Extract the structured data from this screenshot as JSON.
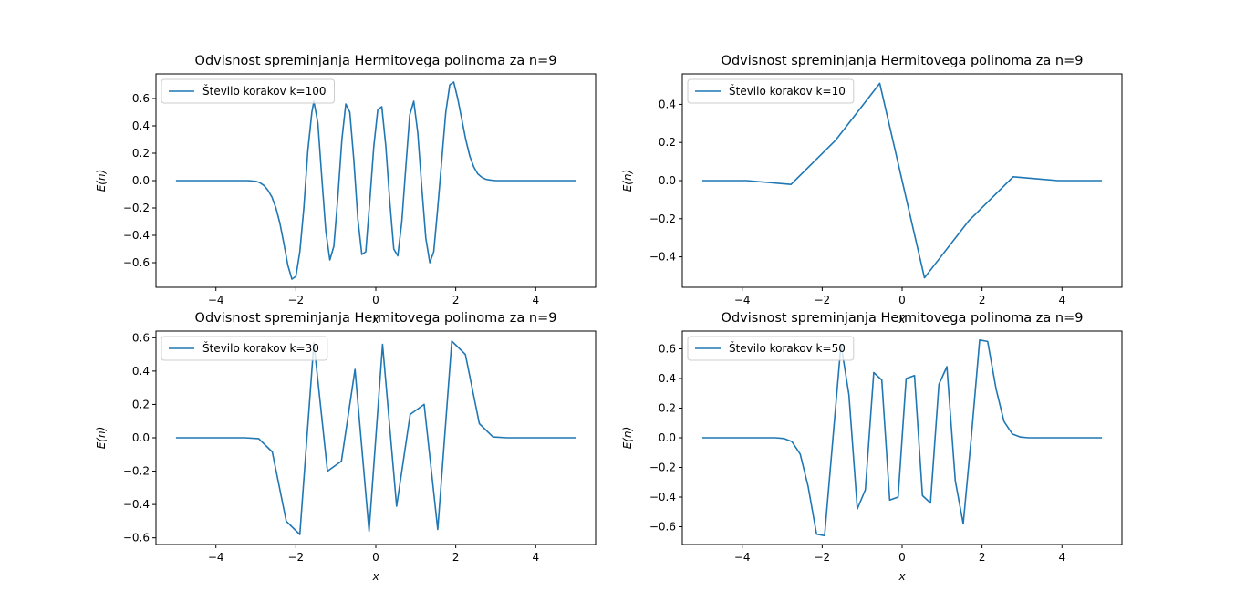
{
  "chart_data": [
    {
      "type": "line",
      "title": "Odvisnost spreminjanja Hermitovega polinoma za n=9",
      "xlabel": "x",
      "ylabel": "E(n)",
      "xlim": [
        -5.5,
        5.5
      ],
      "ylim": [
        -0.78,
        0.78
      ],
      "xticks": [
        -4,
        -2,
        0,
        2,
        4
      ],
      "xtick_labels": [
        "−4",
        "−2",
        "0",
        "2",
        "4"
      ],
      "yticks": [
        -0.6,
        -0.4,
        -0.2,
        0.0,
        0.2,
        0.4,
        0.6
      ],
      "ytick_labels": [
        "−0.6",
        "−0.4",
        "−0.2",
        "0.0",
        "0.2",
        "0.4",
        "0.6"
      ],
      "grid": false,
      "legend_position": "top-left",
      "series": [
        {
          "name": "Število korakov k=100",
          "color": "#1f77b4",
          "x": [
            -5.0,
            -4.0,
            -3.5,
            -3.2,
            -3.0,
            -2.9,
            -2.8,
            -2.7,
            -2.6,
            -2.5,
            -2.4,
            -2.3,
            -2.2,
            -2.1,
            -2.0,
            -1.9,
            -1.8,
            -1.7,
            -1.6,
            -1.55,
            -1.45,
            -1.35,
            -1.25,
            -1.15,
            -1.05,
            -0.95,
            -0.85,
            -0.75,
            -0.65,
            -0.55,
            -0.45,
            -0.35,
            -0.25,
            -0.15,
            -0.05,
            0.05,
            0.15,
            0.25,
            0.35,
            0.45,
            0.55,
            0.65,
            0.75,
            0.85,
            0.95,
            1.05,
            1.15,
            1.25,
            1.35,
            1.45,
            1.55,
            1.65,
            1.75,
            1.85,
            1.95,
            2.05,
            2.15,
            2.25,
            2.35,
            2.45,
            2.55,
            2.65,
            2.75,
            2.85,
            3.0,
            3.2,
            4.0,
            5.0
          ],
          "values": [
            0.0,
            0.0,
            0.0,
            0.0,
            -0.005,
            -0.015,
            -0.035,
            -0.07,
            -0.12,
            -0.2,
            -0.31,
            -0.46,
            -0.62,
            -0.72,
            -0.7,
            -0.52,
            -0.2,
            0.22,
            0.5,
            0.58,
            0.42,
            0.02,
            -0.37,
            -0.58,
            -0.48,
            -0.12,
            0.3,
            0.56,
            0.5,
            0.15,
            -0.28,
            -0.54,
            -0.52,
            -0.15,
            0.25,
            0.52,
            0.54,
            0.25,
            -0.15,
            -0.5,
            -0.55,
            -0.3,
            0.1,
            0.48,
            0.58,
            0.35,
            -0.05,
            -0.42,
            -0.6,
            -0.52,
            -0.2,
            0.15,
            0.5,
            0.7,
            0.72,
            0.6,
            0.45,
            0.3,
            0.18,
            0.1,
            0.05,
            0.025,
            0.01,
            0.005,
            0.0,
            0.0,
            0.0,
            0.0
          ]
        }
      ]
    },
    {
      "type": "line",
      "title": "Odvisnost spreminjanja Hermitovega polinoma za n=9",
      "xlabel": "x",
      "ylabel": "E(n)",
      "xlim": [
        -5.5,
        5.5
      ],
      "ylim": [
        -0.56,
        0.56
      ],
      "xticks": [
        -4,
        -2,
        0,
        2,
        4
      ],
      "xtick_labels": [
        "−4",
        "−2",
        "0",
        "2",
        "4"
      ],
      "yticks": [
        -0.4,
        -0.2,
        0.0,
        0.2,
        0.4
      ],
      "ytick_labels": [
        "−0.4",
        "−0.2",
        "0.0",
        "0.2",
        "0.4"
      ],
      "grid": false,
      "legend_position": "top-left",
      "series": [
        {
          "name": "Število korakov k=10",
          "color": "#1f77b4",
          "x": [
            -5.0,
            -3.89,
            -2.78,
            -1.67,
            -0.56,
            0.56,
            1.67,
            2.78,
            3.89,
            5.0
          ],
          "values": [
            0.0,
            0.0,
            -0.02,
            0.21,
            0.51,
            -0.51,
            -0.21,
            0.02,
            0.0,
            0.0
          ]
        }
      ]
    },
    {
      "type": "line",
      "title": "Odvisnost spreminjanja Hermitovega polinoma za n=9",
      "xlabel": "x",
      "ylabel": "E(n)",
      "xlim": [
        -5.5,
        5.5
      ],
      "ylim": [
        -0.64,
        0.64
      ],
      "xticks": [
        -4,
        -2,
        0,
        2,
        4
      ],
      "xtick_labels": [
        "−4",
        "−2",
        "0",
        "2",
        "4"
      ],
      "yticks": [
        -0.6,
        -0.4,
        -0.2,
        0.0,
        0.2,
        0.4,
        0.6
      ],
      "ytick_labels": [
        "−0.6",
        "−0.4",
        "−0.2",
        "0.0",
        "0.2",
        "0.4",
        "0.6"
      ],
      "grid": false,
      "legend_position": "top-left",
      "series": [
        {
          "name": "Število korakov k=30",
          "color": "#1f77b4",
          "x": [
            -5.0,
            -4.66,
            -4.31,
            -3.97,
            -3.62,
            -3.28,
            -2.93,
            -2.59,
            -2.24,
            -1.9,
            -1.55,
            -1.21,
            -0.86,
            -0.52,
            -0.17,
            0.17,
            0.52,
            0.86,
            1.21,
            1.55,
            1.9,
            2.24,
            2.59,
            2.93,
            3.28,
            3.62,
            3.97,
            4.31,
            4.66,
            5.0
          ],
          "values": [
            0.0,
            0.0,
            0.0,
            0.0,
            0.0,
            0.0,
            -0.005,
            -0.085,
            -0.5,
            -0.58,
            0.57,
            -0.2,
            -0.14,
            0.41,
            -0.56,
            0.56,
            -0.41,
            0.14,
            0.2,
            -0.55,
            0.58,
            0.5,
            0.085,
            0.005,
            0.0,
            0.0,
            0.0,
            0.0,
            0.0,
            0.0
          ]
        }
      ]
    },
    {
      "type": "line",
      "title": "Odvisnost spreminjanja Hermitovega polinoma za n=9",
      "xlabel": "x",
      "ylabel": "E(n)",
      "xlim": [
        -5.5,
        5.5
      ],
      "ylim": [
        -0.72,
        0.72
      ],
      "xticks": [
        -4,
        -2,
        0,
        2,
        4
      ],
      "xtick_labels": [
        "−4",
        "−2",
        "0",
        "2",
        "4"
      ],
      "yticks": [
        -0.6,
        -0.4,
        -0.2,
        0.0,
        0.2,
        0.4,
        0.6
      ],
      "ytick_labels": [
        "−0.6",
        "−0.4",
        "−0.2",
        "0.0",
        "0.2",
        "0.4",
        "0.6"
      ],
      "grid": false,
      "legend_position": "top-left",
      "series": [
        {
          "name": "Število korakov k=50",
          "color": "#1f77b4",
          "x": [
            -5.0,
            -4.8,
            -4.59,
            -4.39,
            -4.18,
            -3.98,
            -3.78,
            -3.57,
            -3.37,
            -3.16,
            -2.96,
            -2.76,
            -2.55,
            -2.35,
            -2.14,
            -1.94,
            -1.73,
            -1.53,
            -1.33,
            -1.12,
            -0.92,
            -0.71,
            -0.51,
            -0.31,
            -0.1,
            0.1,
            0.31,
            0.51,
            0.71,
            0.92,
            1.12,
            1.33,
            1.53,
            1.73,
            1.94,
            2.14,
            2.35,
            2.55,
            2.76,
            2.96,
            3.16,
            3.37,
            3.57,
            3.78,
            3.98,
            4.18,
            4.39,
            4.59,
            4.8,
            5.0
          ],
          "values": [
            0.0,
            0.0,
            0.0,
            0.0,
            0.0,
            0.0,
            0.0,
            0.0,
            0.0,
            0.0,
            -0.005,
            -0.025,
            -0.11,
            -0.33,
            -0.65,
            -0.66,
            0.0,
            0.63,
            0.29,
            -0.48,
            -0.35,
            0.44,
            0.39,
            -0.42,
            -0.4,
            0.4,
            0.42,
            -0.39,
            -0.44,
            0.36,
            0.48,
            -0.29,
            -0.58,
            0.0,
            0.66,
            0.65,
            0.33,
            0.11,
            0.025,
            0.005,
            0.0,
            0.0,
            0.0,
            0.0,
            0.0,
            0.0,
            0.0,
            0.0,
            0.0,
            0.0
          ]
        }
      ]
    }
  ]
}
